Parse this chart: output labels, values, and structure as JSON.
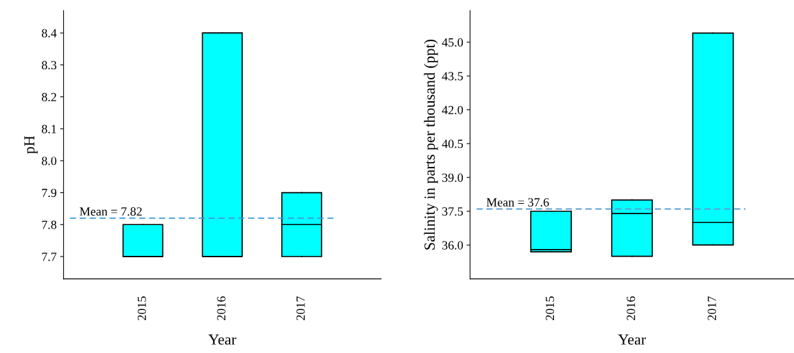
{
  "chart_data": [
    {
      "type": "box",
      "xlabel": "Year",
      "ylabel": "pH",
      "categories": [
        "2015",
        "2016",
        "2017"
      ],
      "color": "#00ffff",
      "boxes": [
        {
          "low": 7.7,
          "q1": 7.7,
          "median": 7.7,
          "q3": 7.8,
          "high": 7.8
        },
        {
          "low": 7.7,
          "q1": 7.7,
          "median": 7.7,
          "q3": 8.4,
          "high": 8.4
        },
        {
          "low": 7.7,
          "q1": 7.7,
          "median": 7.8,
          "q3": 7.9,
          "high": 7.9
        }
      ],
      "ylim": [
        7.63,
        8.47
      ],
      "yticks": [
        {
          "value": 7.7,
          "label": "7.7"
        },
        {
          "value": 7.8,
          "label": "7.8"
        },
        {
          "value": 7.9,
          "label": "7.9"
        },
        {
          "value": 8.0,
          "label": "8.0"
        },
        {
          "value": 8.1,
          "label": "8.1"
        },
        {
          "value": 8.2,
          "label": "8.2"
        },
        {
          "value": 8.3,
          "label": "8.3"
        },
        {
          "value": 8.4,
          "label": "8.4"
        }
      ],
      "ref_lines": [
        {
          "axis": "y",
          "value": 7.82,
          "label": "Mean = 7.82",
          "color": "#3a9ad9",
          "line_style": "dashed"
        }
      ],
      "grid": false,
      "legend": false
    },
    {
      "type": "box",
      "xlabel": "Year",
      "ylabel": "Salinity in parts per thousand (ppt)",
      "categories": [
        "2015",
        "2016",
        "2017"
      ],
      "color": "#00ffff",
      "boxes": [
        {
          "low": 35.7,
          "q1": 35.7,
          "median": 35.8,
          "q3": 37.5,
          "high": 37.5
        },
        {
          "low": 35.5,
          "q1": 35.5,
          "median": 37.4,
          "q3": 38.0,
          "high": 38.0
        },
        {
          "low": 36.0,
          "q1": 36.0,
          "median": 37.0,
          "q3": 45.4,
          "high": 45.4
        }
      ],
      "ylim": [
        34.5,
        46.4
      ],
      "yticks": [
        {
          "value": 36.0,
          "label": "36.0"
        },
        {
          "value": 37.5,
          "label": "37.5"
        },
        {
          "value": 39.0,
          "label": "39.0"
        },
        {
          "value": 40.5,
          "label": "40.5"
        },
        {
          "value": 42.0,
          "label": "42.0"
        },
        {
          "value": 43.5,
          "label": "43.5"
        },
        {
          "value": 45.0,
          "label": "45.0"
        }
      ],
      "ref_lines": [
        {
          "axis": "y",
          "value": 37.6,
          "label": "Mean = 37.6",
          "color": "#5a9fd4",
          "line_style": "dashed"
        }
      ],
      "grid": false,
      "legend": false
    }
  ]
}
